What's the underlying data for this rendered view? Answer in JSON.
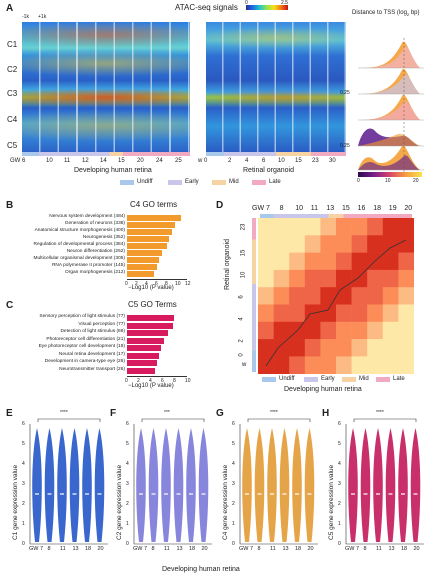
{
  "panelA": {
    "letter": "A",
    "title": "ATAC-seq signals",
    "scale_min": "0",
    "scale_max": "2.5",
    "tss_title": "Distance to TSS (log",
    "tss_title_sub": "2",
    "tss_title_end": " bp)",
    "flank_left": "-1k",
    "flank_right": "+1k",
    "clusters": [
      "C1",
      "C2",
      "C3",
      "C4",
      "C5"
    ],
    "human_ages": [
      "GW 6",
      "10",
      "11",
      "12",
      "14",
      "15",
      "20",
      "24",
      "25"
    ],
    "organoid_ages": [
      "w 0",
      "2",
      "4",
      "6",
      "10",
      "15",
      "23",
      "30"
    ],
    "human_label": "Developing human retina",
    "organoid_label": "Retinal organoid",
    "legend": [
      {
        "label": "Undiff",
        "color": "#a8c8ec"
      },
      {
        "label": "Early",
        "color": "#c9c6ec"
      },
      {
        "label": "Mid",
        "color": "#f7d3a4"
      },
      {
        "label": "Late",
        "color": "#f2a9c2"
      }
    ],
    "density_tick_top": "0.25",
    "density_tick_low": "0.25",
    "density_x_ticks": [
      "0",
      "10",
      "20"
    ]
  },
  "panelB": {
    "letter": "B",
    "title": "C4 GO terms",
    "xlabel": "−Log10 (P value)",
    "color": "#f39a2c",
    "ticks": [
      "0",
      "2",
      "4",
      "6",
      "8",
      "10",
      "12"
    ],
    "xmax": 12
  },
  "panelC": {
    "letter": "C",
    "title": "C5 GO Terms",
    "xlabel": "−Log10 (P value)",
    "color": "#d81b5e",
    "ticks": [
      "0",
      "2",
      "4",
      "6",
      "8",
      "10"
    ],
    "xmax": 10
  },
  "panelD": {
    "letter": "D",
    "top_ages": [
      "GW 7",
      "8",
      "10",
      "11",
      "13",
      "15",
      "16",
      "18",
      "19",
      "20"
    ],
    "left_ages": [
      "23",
      "15",
      "10",
      "6",
      "4",
      "2",
      "0"
    ],
    "ylabel": "Retinal organoid",
    "xlabel": "Developing human retina",
    "w_label": "w"
  },
  "panelsEH": [
    {
      "letter": "E",
      "ylabel": "C1 gene expression value",
      "sig": "****",
      "color": "#2457c9"
    },
    {
      "letter": "F",
      "ylabel": "C2 gene expression value",
      "sig": "***",
      "color": "#7a79d8"
    },
    {
      "letter": "G",
      "ylabel": "C4 gene expression value",
      "sig": "****",
      "color": "#e39a35"
    },
    {
      "letter": "H",
      "ylabel": "C5 gene expression value",
      "sig": "****",
      "color": "#c2185b"
    }
  ],
  "violin_x": [
    "GW 7",
    "8",
    "11",
    "13",
    "18",
    "20"
  ],
  "violin_y": [
    "0",
    "1",
    "2",
    "3",
    "4",
    "5",
    "6"
  ],
  "bottom_label": "Developing human retina",
  "chart_data": [
    {
      "type": "bar",
      "title": "C4 GO terms",
      "xlabel": "−Log10 (P value)",
      "categories": [
        "Nervous system development (484)",
        "Generation of neurons (338)",
        "Anatomical structure morphogenesis (400)",
        "Neurogenesis (352)",
        "Regulation of developmental process (384)",
        "Neuron differentiation (252)",
        "Multicellular organismal development (305)",
        "RNA polymerase II promoter (145)",
        "Organ morphogenesis (212)"
      ],
      "values": [
        10.8,
        9.5,
        8.9,
        8.4,
        8.0,
        6.9,
        6.4,
        5.9,
        5.4
      ],
      "xlim": [
        0,
        12
      ]
    },
    {
      "type": "bar",
      "title": "C5 GO Terms",
      "xlabel": "−Log10 (P value)",
      "categories": [
        "Sensory perception of light stimulus (77)",
        "Visual perception (77)",
        "Detection of light stimulus (86)",
        "Photoreceptor cell differentiation (21)",
        "Eye photoreceptor cell development (18)",
        "Neural retina development (17)",
        "Development in camera-type eye (26)",
        "Neurotransmitter transport (26)"
      ],
      "values": [
        7.8,
        7.6,
        6.8,
        6.2,
        5.7,
        5.3,
        5.0,
        4.7
      ],
      "xlim": [
        0,
        10
      ]
    }
  ]
}
